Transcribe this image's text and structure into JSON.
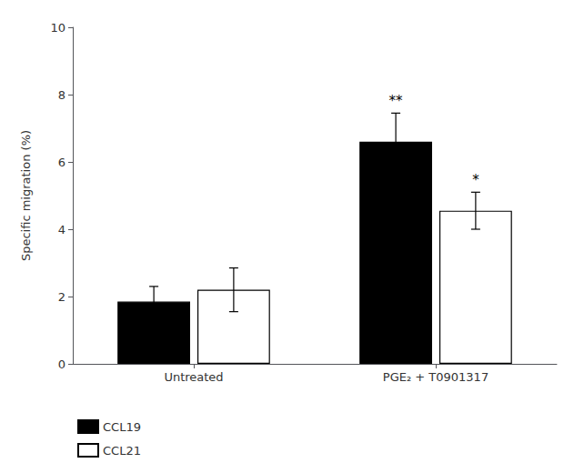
{
  "chart_data": {
    "type": "bar",
    "categories": [
      "Untreated",
      "PGE₂ + T0901317"
    ],
    "series": [
      {
        "name": "CCL19",
        "color": "#000000",
        "values": [
          1.85,
          6.6
        ],
        "errors": [
          0.45,
          0.85
        ]
      },
      {
        "name": "CCL21",
        "color": "#ffffff",
        "values": [
          2.2,
          4.55
        ],
        "errors": [
          0.65,
          0.55
        ]
      }
    ],
    "ylabel": "Specific migration (%)",
    "ylim": [
      0,
      10
    ],
    "yticks": [
      0,
      2,
      4,
      6,
      8,
      10
    ],
    "annotations": [
      {
        "text": "**",
        "series": "CCL19",
        "category": "PGE₂ + T0901317"
      },
      {
        "text": "*",
        "series": "CCL21",
        "category": "PGE₂ + T0901317"
      }
    ],
    "grid": false,
    "legend": "lower left"
  }
}
